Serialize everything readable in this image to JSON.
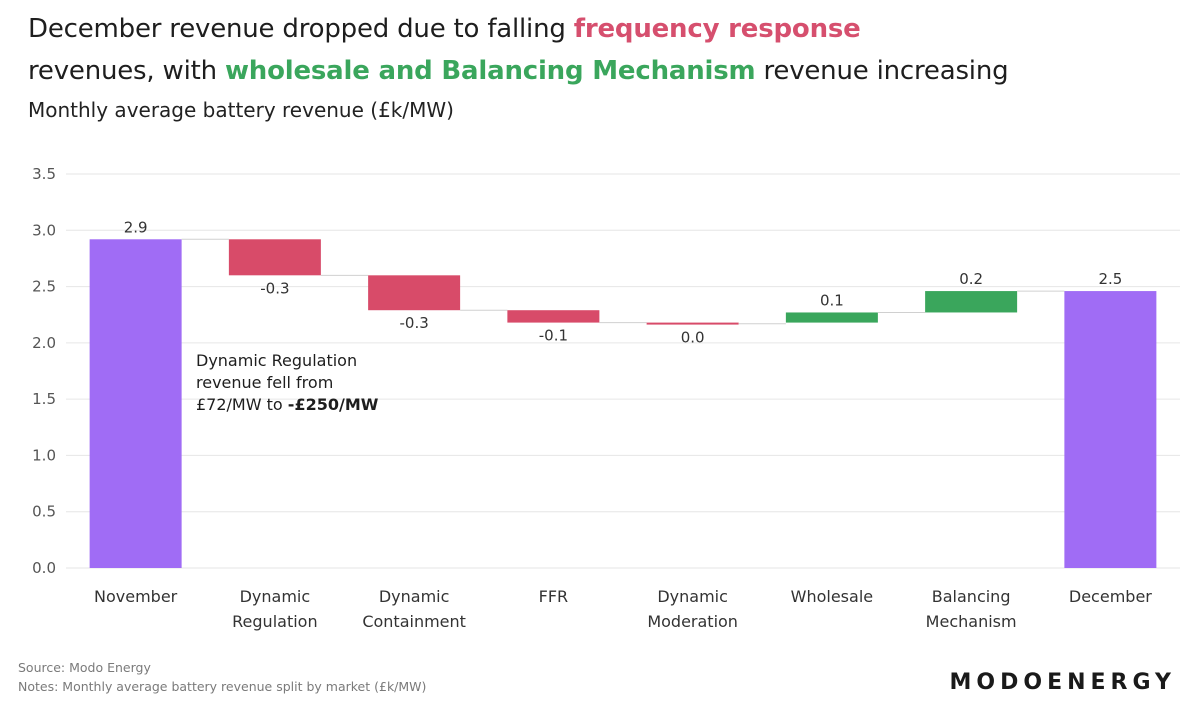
{
  "headline": {
    "part1": "December revenue dropped due to falling ",
    "highlight1": "frequency response",
    "part2": "revenues, with ",
    "highlight2": "wholesale and Balancing Mechanism",
    "part3": " revenue increasing"
  },
  "subtitle": "Monthly average battery revenue (£k/MW)",
  "annotation": {
    "line1": "Dynamic Regulation",
    "line2": "revenue fell from",
    "line3_prefix": "£72/MW to ",
    "line3_bold": "-£250/MW"
  },
  "footer": {
    "source": "Source: Modo Energy",
    "notes": "Notes: Monthly average battery revenue split by market (£k/MW)",
    "brand": "MODOENERGY"
  },
  "colors": {
    "total": "#a06cf5",
    "decrease": "#d84b69",
    "increase": "#3aa65c",
    "grid": "#e6e6e6",
    "connector": "#d0d0d0"
  },
  "chart_data": {
    "type": "waterfall",
    "title": "Monthly average battery revenue (£k/MW)",
    "ylim": [
      0,
      3.5
    ],
    "yticks": [
      "0.0",
      "0.5",
      "1.0",
      "1.5",
      "2.0",
      "2.5",
      "3.0",
      "3.5"
    ],
    "grid": true,
    "bars": [
      {
        "category": [
          "November"
        ],
        "kind": "total",
        "start": 0,
        "end": 2.92,
        "label": "2.9"
      },
      {
        "category": [
          "Dynamic",
          "Regulation"
        ],
        "kind": "decrease",
        "start": 2.92,
        "end": 2.6,
        "label": "-0.3"
      },
      {
        "category": [
          "Dynamic",
          "Containment"
        ],
        "kind": "decrease",
        "start": 2.6,
        "end": 2.29,
        "label": "-0.3"
      },
      {
        "category": [
          "FFR"
        ],
        "kind": "decrease",
        "start": 2.29,
        "end": 2.18,
        "label": "-0.1"
      },
      {
        "category": [
          "Dynamic",
          "Moderation"
        ],
        "kind": "decrease",
        "start": 2.18,
        "end": 2.17,
        "label": "0.0"
      },
      {
        "category": [
          "Wholesale"
        ],
        "kind": "increase",
        "start": 2.18,
        "end": 2.27,
        "label": "0.1"
      },
      {
        "category": [
          "Balancing",
          "Mechanism"
        ],
        "kind": "increase",
        "start": 2.27,
        "end": 2.46,
        "label": "0.2"
      },
      {
        "category": [
          "December"
        ],
        "kind": "total",
        "start": 0,
        "end": 2.46,
        "label": "2.5"
      }
    ]
  }
}
